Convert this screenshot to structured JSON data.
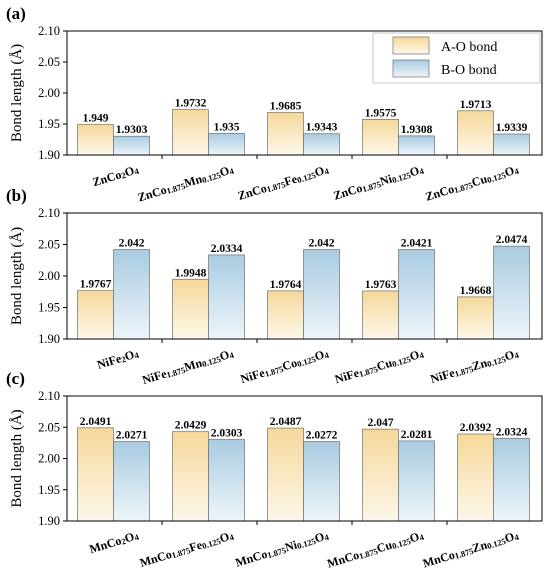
{
  "figure": {
    "ylabel": "Bond length (Å)",
    "legend": [
      {
        "label": "A-O bond",
        "color_top": "#f5d89a",
        "color_bottom": "#fdf7e9"
      },
      {
        "label": "B-O bond",
        "color_top": "#a9cbe0",
        "color_bottom": "#edf5fa"
      }
    ]
  },
  "chart_data": [
    {
      "panel": "(a)",
      "type": "bar",
      "ylabel": "Bond length (Å)",
      "ylim": [
        1.9,
        2.1
      ],
      "yticks": [
        "1.90",
        "1.95",
        "2.00",
        "2.05",
        "2.10"
      ],
      "legend_position": "top-right",
      "categories": [
        [
          {
            "t": "ZnCo"
          },
          {
            "t": "2",
            "s": 1
          },
          {
            "t": "O"
          },
          {
            "t": "4",
            "s": 1
          }
        ],
        [
          {
            "t": "ZnCo"
          },
          {
            "t": "1.875",
            "s": 1
          },
          {
            "t": "Mn"
          },
          {
            "t": "0.125",
            "s": 1
          },
          {
            "t": "O"
          },
          {
            "t": "4",
            "s": 1
          }
        ],
        [
          {
            "t": "ZnCo"
          },
          {
            "t": "1.875",
            "s": 1
          },
          {
            "t": "Fe"
          },
          {
            "t": "0.125",
            "s": 1
          },
          {
            "t": "O"
          },
          {
            "t": "4",
            "s": 1
          }
        ],
        [
          {
            "t": "ZnCo"
          },
          {
            "t": "1.875",
            "s": 1
          },
          {
            "t": "Ni"
          },
          {
            "t": "0.125",
            "s": 1
          },
          {
            "t": "O"
          },
          {
            "t": "4",
            "s": 1
          }
        ],
        [
          {
            "t": "ZnCo"
          },
          {
            "t": "1.875",
            "s": 1
          },
          {
            "t": "Cu"
          },
          {
            "t": "0.125",
            "s": 1
          },
          {
            "t": "O"
          },
          {
            "t": "4",
            "s": 1
          }
        ]
      ],
      "series": [
        {
          "name": "A-O bond",
          "values": [
            1.949,
            1.9732,
            1.9685,
            1.9575,
            1.9713
          ],
          "labels": [
            "1.949",
            "1.9732",
            "1.9685",
            "1.9575",
            "1.9713"
          ]
        },
        {
          "name": "B-O bond",
          "values": [
            1.9303,
            1.935,
            1.9343,
            1.9308,
            1.9339
          ],
          "labels": [
            "1.9303",
            "1.935",
            "1.9343",
            "1.9308",
            "1.9339"
          ]
        }
      ]
    },
    {
      "panel": "(b)",
      "type": "bar",
      "ylabel": "Bond length (Å)",
      "ylim": [
        1.9,
        2.1
      ],
      "yticks": [
        "1.90",
        "1.95",
        "2.00",
        "2.05",
        "2.10"
      ],
      "categories": [
        [
          {
            "t": "NiFe"
          },
          {
            "t": "2",
            "s": 1
          },
          {
            "t": "O"
          },
          {
            "t": "4",
            "s": 1
          }
        ],
        [
          {
            "t": "NiFe"
          },
          {
            "t": "1.875",
            "s": 1
          },
          {
            "t": "Mn"
          },
          {
            "t": "0.125",
            "s": 1
          },
          {
            "t": "O"
          },
          {
            "t": "4",
            "s": 1
          }
        ],
        [
          {
            "t": "NiFe"
          },
          {
            "t": "1.875",
            "s": 1
          },
          {
            "t": "Co"
          },
          {
            "t": "0.125",
            "s": 1
          },
          {
            "t": "O"
          },
          {
            "t": "4",
            "s": 1
          }
        ],
        [
          {
            "t": "NiFe"
          },
          {
            "t": "1.875",
            "s": 1
          },
          {
            "t": "Cu"
          },
          {
            "t": "0.125",
            "s": 1
          },
          {
            "t": "O"
          },
          {
            "t": "4",
            "s": 1
          }
        ],
        [
          {
            "t": "NiFe"
          },
          {
            "t": "1.875",
            "s": 1
          },
          {
            "t": "Zn"
          },
          {
            "t": "0.125",
            "s": 1
          },
          {
            "t": "O"
          },
          {
            "t": "4",
            "s": 1
          }
        ]
      ],
      "series": [
        {
          "name": "A-O bond",
          "values": [
            1.9767,
            1.9948,
            1.9764,
            1.9763,
            1.9668
          ],
          "labels": [
            "1.9767",
            "1.9948",
            "1.9764",
            "1.9763",
            "1.9668"
          ]
        },
        {
          "name": "B-O bond",
          "values": [
            2.042,
            2.0334,
            2.042,
            2.0421,
            2.0474
          ],
          "labels": [
            "2.042",
            "2.0334",
            "2.042",
            "2.0421",
            "2.0474"
          ]
        }
      ]
    },
    {
      "panel": "(c)",
      "type": "bar",
      "ylabel": "Bond length (Å)",
      "ylim": [
        1.9,
        2.1
      ],
      "yticks": [
        "1.90",
        "1.95",
        "2.00",
        "2.05",
        "2.10"
      ],
      "categories": [
        [
          {
            "t": "MnCo"
          },
          {
            "t": "2",
            "s": 1
          },
          {
            "t": "O"
          },
          {
            "t": "4",
            "s": 1
          }
        ],
        [
          {
            "t": "MnCo"
          },
          {
            "t": "1.875",
            "s": 1
          },
          {
            "t": "Fe"
          },
          {
            "t": "0.125",
            "s": 1
          },
          {
            "t": "O"
          },
          {
            "t": "4",
            "s": 1
          }
        ],
        [
          {
            "t": "MnCo"
          },
          {
            "t": "1.875",
            "s": 1
          },
          {
            "t": "Ni"
          },
          {
            "t": "0.125",
            "s": 1
          },
          {
            "t": "O"
          },
          {
            "t": "4",
            "s": 1
          }
        ],
        [
          {
            "t": "MnCo"
          },
          {
            "t": "1.875",
            "s": 1
          },
          {
            "t": "Cu"
          },
          {
            "t": "0.125",
            "s": 1
          },
          {
            "t": "O"
          },
          {
            "t": "4",
            "s": 1
          }
        ],
        [
          {
            "t": "MnCo"
          },
          {
            "t": "1.875",
            "s": 1
          },
          {
            "t": "Zn"
          },
          {
            "t": "0.125",
            "s": 1
          },
          {
            "t": "O"
          },
          {
            "t": "4",
            "s": 1
          }
        ]
      ],
      "series": [
        {
          "name": "A-O bond",
          "values": [
            2.0491,
            2.0429,
            2.0487,
            2.047,
            2.0392
          ],
          "labels": [
            "2.0491",
            "2.0429",
            "2.0487",
            "2.047",
            "2.0392"
          ]
        },
        {
          "name": "B-O bond",
          "values": [
            2.0271,
            2.0303,
            2.0272,
            2.0281,
            2.0324
          ],
          "labels": [
            "2.0271",
            "2.0303",
            "2.0272",
            "2.0281",
            "2.0324"
          ]
        }
      ]
    }
  ]
}
